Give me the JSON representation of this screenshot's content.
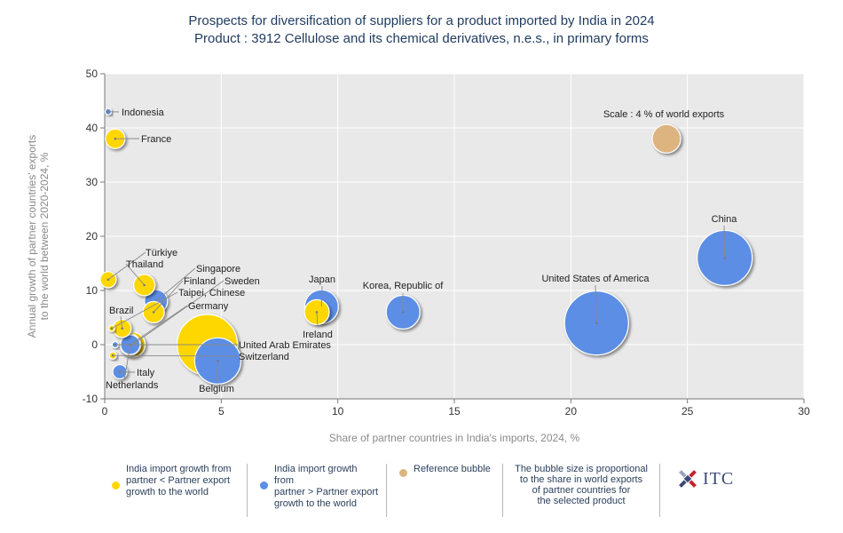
{
  "header": {
    "title": "Prospects for diversification of suppliers for a product imported by India in 2024",
    "subtitle": "Product : 3912 Cellulose and its chemical derivatives, n.e.s., in primary forms"
  },
  "chart_data": {
    "type": "scatter",
    "title": "Prospects for diversification of suppliers for a product imported by India in 2024",
    "subtitle": "Product : 3912 Cellulose and its chemical derivatives, n.e.s., in primary forms",
    "xlabel": "Share of partner countries in India's imports, 2024, %",
    "ylabel_lines": [
      "Annual growth of partner countries' exports",
      "to the world between 2020-2024, %"
    ],
    "xlim": [
      0,
      30
    ],
    "ylim": [
      -10,
      50
    ],
    "xticks": [
      "0",
      "5",
      "10",
      "15",
      "20",
      "25",
      "30"
    ],
    "yticks": [
      "-10",
      "0",
      "10",
      "20",
      "30",
      "40",
      "50"
    ],
    "grid": true,
    "colors": {
      "yellow": "#ffd700",
      "blue": "#5b8ee6",
      "reference": "#ddb47f",
      "plot_bg": "#e9e9e9",
      "grid": "#ffffff",
      "leader": "#888888"
    },
    "points": [
      {
        "name": "Indonesia",
        "x": 0.15,
        "y": 43,
        "group": "blue",
        "label": "Indonesia"
      },
      {
        "name": "France",
        "x": 0.45,
        "y": 38,
        "group": "yellow",
        "label": "France"
      },
      {
        "name": "Türkiye",
        "x": 0.15,
        "y": 12,
        "group": "yellow",
        "label": "Türkiye"
      },
      {
        "name": "Thailand",
        "x": 1.7,
        "y": 11,
        "group": "yellow",
        "label": "Thailand"
      },
      {
        "name": "Singapore",
        "x": 2.2,
        "y": 8,
        "group": "blue",
        "label": "Singapore"
      },
      {
        "name": "Finland",
        "x": 2.1,
        "y": 6,
        "group": "yellow",
        "label": "Finland"
      },
      {
        "name": "Sweden",
        "x": 1.2,
        "y": 0,
        "group": "yellow",
        "label": "Sweden"
      },
      {
        "name": "Taipei, Chinese",
        "x": 0.3,
        "y": 3,
        "group": "yellow",
        "label": "Taipei, Chinese"
      },
      {
        "name": "Germany",
        "x": 1.1,
        "y": 0,
        "group": "blue",
        "label": "Germany"
      },
      {
        "name": "Brazil",
        "x": 0.75,
        "y": 3,
        "group": "yellow",
        "label": "Brazil"
      },
      {
        "name": "United Arab Emirates",
        "x": 0.45,
        "y": 0,
        "group": "blue",
        "label": "United Arab Emirates"
      },
      {
        "name": "Switzerland",
        "x": 0.35,
        "y": -2,
        "group": "yellow",
        "label": "Switzerland"
      },
      {
        "name": "Italy",
        "x": 0.65,
        "y": -5,
        "group": "blue",
        "label": "Italy"
      },
      {
        "name": "Netherlands",
        "x": 1.1,
        "y": 0,
        "group": "yellow",
        "label": "Netherlands"
      },
      {
        "name": "Belgium",
        "x": 4.85,
        "y": -3,
        "group": "blue",
        "label": "Belgium"
      },
      {
        "name": "Japan",
        "x": 9.3,
        "y": 7,
        "group": "blue",
        "label": "Japan"
      },
      {
        "name": "Ireland",
        "x": 9.1,
        "y": 6,
        "group": "yellow",
        "label": "Ireland"
      },
      {
        "name": "Korea, Republic of",
        "x": 12.8,
        "y": 6,
        "group": "blue",
        "label": "Korea, Republic of"
      },
      {
        "name": "United States of America",
        "x": 21.1,
        "y": 4,
        "group": "blue",
        "label": "United States of America"
      },
      {
        "name": "China",
        "x": 26.6,
        "y": 16,
        "group": "blue",
        "label": "China"
      },
      {
        "name": "unlabeled-yellow-large",
        "x": 4.4,
        "y": 0,
        "group": "yellow",
        "label": ""
      }
    ],
    "reference_bubble": {
      "x": 24.1,
      "y": 38,
      "size_pct": 4,
      "label": "Scale : 4 % of world exports"
    }
  },
  "legend": {
    "item_yellow": [
      "India import growth from",
      "partner < Partner export",
      "growth to the world"
    ],
    "item_blue": [
      "India import growth from",
      "partner > Partner export",
      "growth to the world"
    ],
    "item_reference": "Reference bubble",
    "note": [
      "The bubble size is proportional",
      "to the share in world exports",
      "of partner countries for",
      "the selected product"
    ],
    "logo_text": "ITC"
  }
}
